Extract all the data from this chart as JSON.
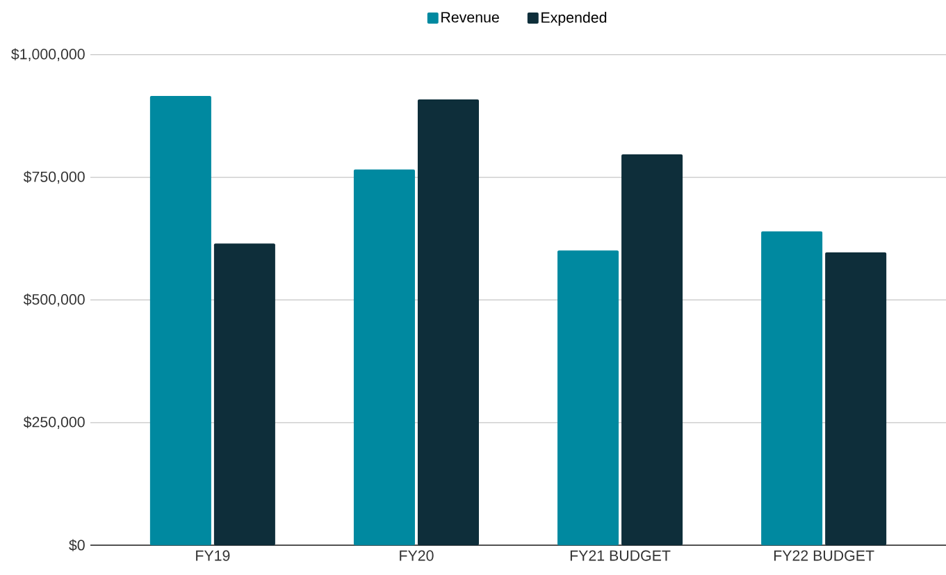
{
  "chart_data": {
    "type": "bar",
    "categories": [
      "FY19",
      "FY20",
      "FY21 BUDGET",
      "FY22 BUDGET"
    ],
    "series": [
      {
        "name": "Revenue",
        "color": "#0089a0",
        "values": [
          916000,
          766000,
          601000,
          640000
        ]
      },
      {
        "name": "Expended",
        "color": "#0e2e3a",
        "values": [
          615000,
          909000,
          797000,
          597000
        ]
      }
    ],
    "ylim": [
      0,
      1000000
    ],
    "yticks": [
      {
        "value": 0,
        "label": "$0"
      },
      {
        "value": 250000,
        "label": "$250,000"
      },
      {
        "value": 500000,
        "label": "$500,000"
      },
      {
        "value": 750000,
        "label": "$750,000"
      },
      {
        "value": 1000000,
        "label": "$1,000,000"
      }
    ],
    "grid": "y",
    "legend": "top"
  }
}
